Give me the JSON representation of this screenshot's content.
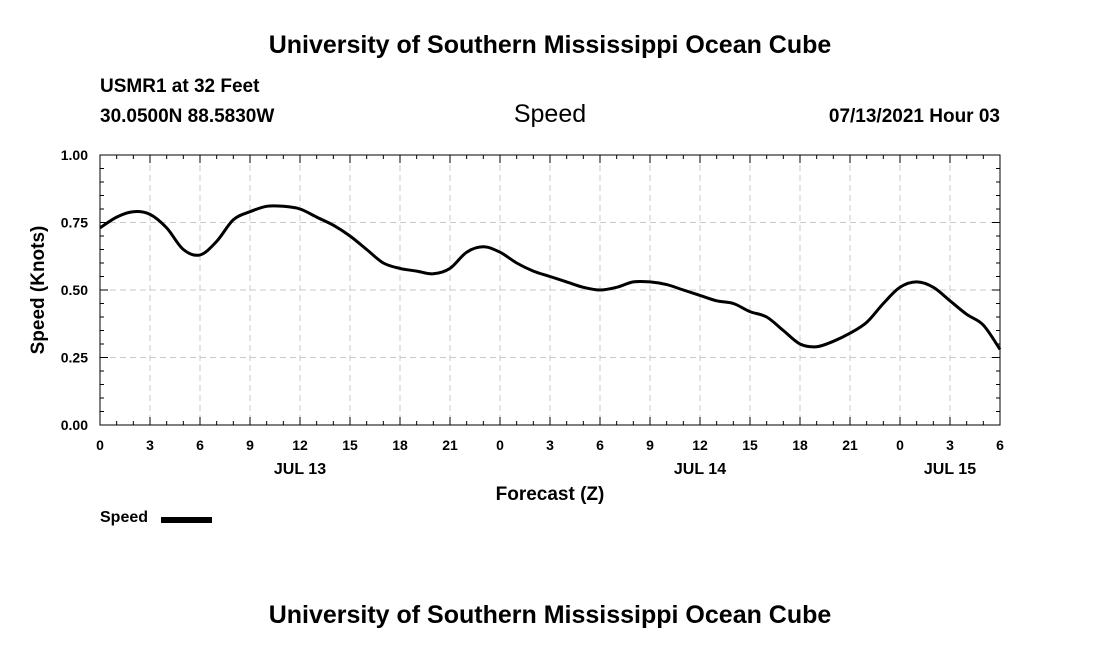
{
  "header": {
    "title_top": "University of Southern Mississippi Ocean Cube",
    "station": "USMR1 at 32 Feet",
    "coords": "30.0500N  88.5830W",
    "variable": "Speed",
    "timestamp": "07/13/2021 Hour 03"
  },
  "footer": {
    "title_bottom": "University of Southern Mississippi Ocean Cube"
  },
  "legend": {
    "label": "Speed",
    "color": "#000000"
  },
  "chart_data": {
    "type": "line",
    "title": "Speed",
    "xlabel": "Forecast (Z)",
    "ylabel": "Speed (Knots)",
    "xlim": [
      0,
      54
    ],
    "ylim": [
      0,
      1
    ],
    "x_tick_values": [
      0,
      3,
      6,
      9,
      12,
      15,
      18,
      21,
      24,
      27,
      30,
      33,
      36,
      39,
      42,
      45,
      48,
      51,
      54
    ],
    "x_tick_labels": [
      "0",
      "3",
      "6",
      "9",
      "12",
      "15",
      "18",
      "21",
      "0",
      "3",
      "6",
      "9",
      "12",
      "15",
      "18",
      "21",
      "0",
      "3",
      "6"
    ],
    "y_tick_values": [
      0,
      0.25,
      0.5,
      0.75,
      1.0
    ],
    "y_tick_labels": [
      "0.00",
      "0.25",
      "0.50",
      "0.75",
      "1.00"
    ],
    "date_labels": [
      {
        "x": 12,
        "label": "JUL 13"
      },
      {
        "x": 36,
        "label": "JUL 14"
      },
      {
        "x": 51,
        "label": "JUL 15"
      }
    ],
    "grid": true,
    "series": [
      {
        "name": "Speed",
        "color": "#000000",
        "x": [
          0,
          1,
          2,
          3,
          4,
          5,
          6,
          7,
          8,
          9,
          10,
          11,
          12,
          13,
          14,
          15,
          16,
          17,
          18,
          19,
          20,
          21,
          22,
          23,
          24,
          25,
          26,
          27,
          28,
          29,
          30,
          31,
          32,
          33,
          34,
          35,
          36,
          37,
          38,
          39,
          40,
          41,
          42,
          43,
          44,
          45,
          46,
          47,
          48,
          49,
          50,
          51,
          52,
          53,
          54
        ],
        "values": [
          0.73,
          0.77,
          0.79,
          0.78,
          0.73,
          0.65,
          0.63,
          0.68,
          0.76,
          0.79,
          0.81,
          0.81,
          0.8,
          0.77,
          0.74,
          0.7,
          0.65,
          0.6,
          0.58,
          0.57,
          0.56,
          0.58,
          0.64,
          0.66,
          0.64,
          0.6,
          0.57,
          0.55,
          0.53,
          0.51,
          0.5,
          0.51,
          0.53,
          0.53,
          0.52,
          0.5,
          0.48,
          0.46,
          0.45,
          0.42,
          0.4,
          0.35,
          0.3,
          0.29,
          0.31,
          0.34,
          0.38,
          0.45,
          0.51,
          0.53,
          0.51,
          0.46,
          0.41,
          0.37,
          0.28
        ]
      }
    ]
  }
}
